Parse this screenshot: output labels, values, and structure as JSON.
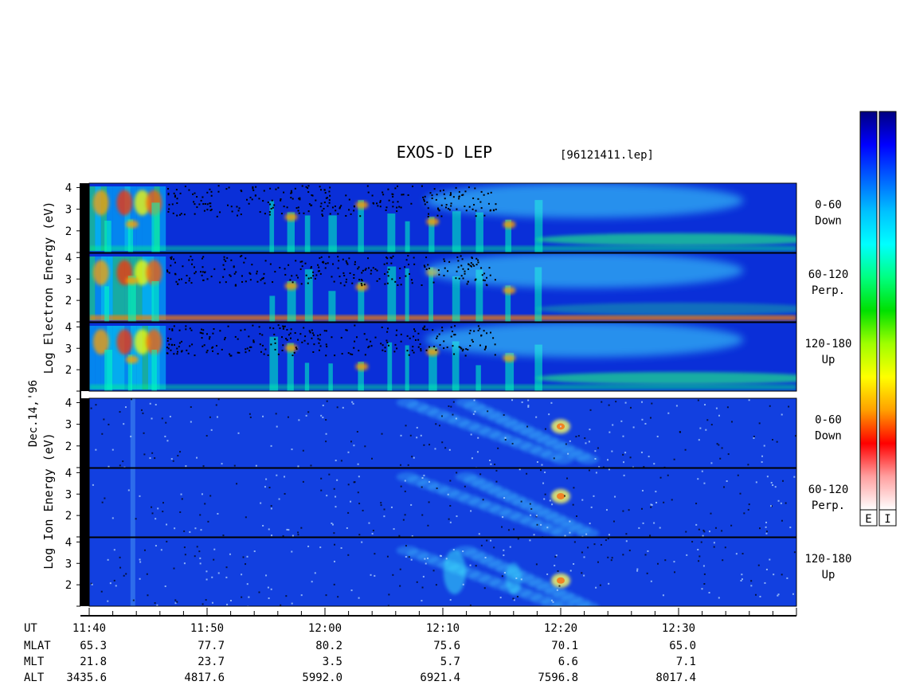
{
  "chart_data": {
    "type": "heatmap",
    "title": "EXOS-D LEP",
    "file_label": "[96121411.lep]",
    "date_label": "Dec.14,'96",
    "electron_ylabel": [
      "Log",
      "Electron",
      "Energy",
      "(eV)"
    ],
    "ion_ylabel": [
      "Log",
      "Ion",
      "Energy",
      "(eV)"
    ],
    "ylim": [
      1,
      4.2
    ],
    "ytick_labels": [
      "4",
      "3",
      "2"
    ],
    "electron_panels": [
      {
        "angle": "0-60",
        "direction": "Down"
      },
      {
        "angle": "60-120",
        "direction": "Perp."
      },
      {
        "angle": "120-180",
        "direction": "Up"
      }
    ],
    "ion_panels": [
      {
        "angle": "0-60",
        "direction": "Down"
      },
      {
        "angle": "60-120",
        "direction": "Perp."
      },
      {
        "angle": "120-180",
        "direction": "Up"
      }
    ],
    "xlim": [
      "11:40",
      "12:40"
    ],
    "orbit_rows": [
      {
        "label": "UT",
        "values": [
          "11:40",
          "11:50",
          "12:00",
          "12:10",
          "12:20",
          "12:30"
        ]
      },
      {
        "label": "MLAT",
        "values": [
          "65.3",
          "77.7",
          "80.2",
          "75.6",
          "70.1",
          "65.0"
        ]
      },
      {
        "label": "MLT",
        "values": [
          "21.8",
          "23.7",
          "3.5",
          "5.7",
          "6.6",
          "7.1"
        ]
      },
      {
        "label": "ALT",
        "values": [
          "3435.6",
          "4817.6",
          "5992.0",
          "6921.4",
          "7596.8",
          "8017.4"
        ]
      }
    ],
    "colorbars": [
      {
        "label": "E"
      },
      {
        "label": "I"
      }
    ],
    "colormap": [
      "#000080",
      "#0000ff",
      "#0060ff",
      "#00c0ff",
      "#00ffff",
      "#00ff80",
      "#00e000",
      "#a0ff00",
      "#ffff00",
      "#ffa000",
      "#ff0000",
      "#ffa0a0",
      "#ffffff"
    ],
    "features": {
      "electron_bursts_ut_minutes": [
        1.5,
        3.5,
        5.5,
        15.5,
        17,
        18.5,
        20.5,
        23,
        25.5,
        27,
        29,
        31,
        33,
        35.5,
        38
      ],
      "ion_arc_ut_minutes": [
        [
          27,
          41
        ],
        [
          32,
          43
        ]
      ]
    }
  }
}
